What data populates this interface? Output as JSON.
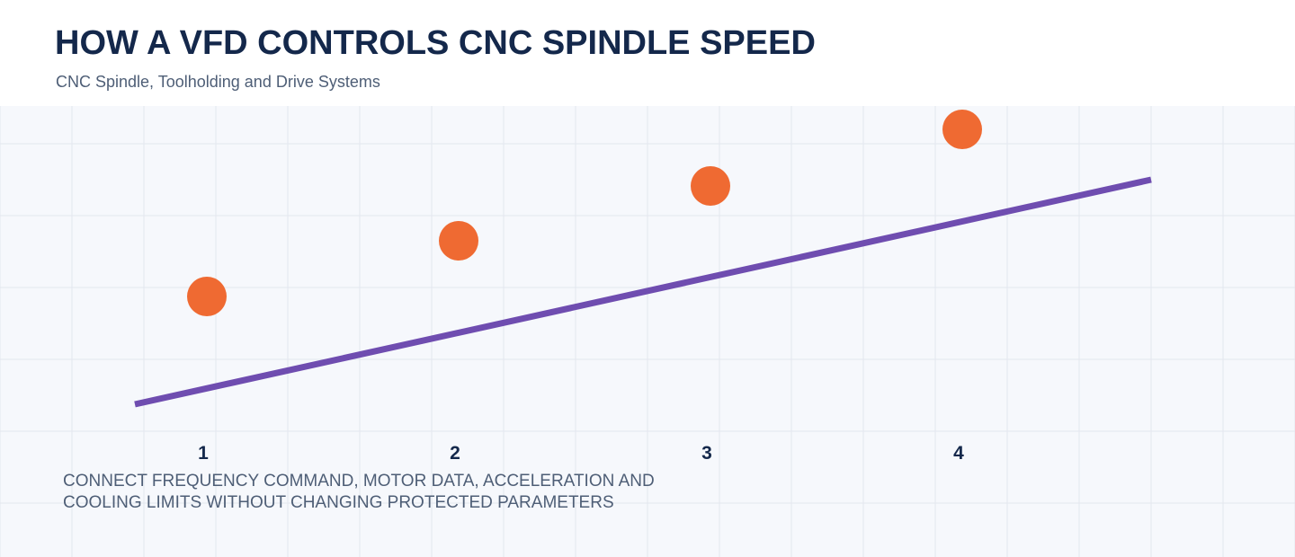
{
  "header": {
    "title": "HOW A VFD CONTROLS CNC SPINDLE SPEED",
    "subtitle": "CNC Spindle, Toolholding and Drive Systems"
  },
  "diagram": {
    "steps": [
      {
        "label": "1"
      },
      {
        "label": "2"
      },
      {
        "label": "3"
      },
      {
        "label": "4"
      }
    ],
    "caption_lines": [
      "CONNECT FREQUENCY COMMAND, MOTOR DATA, ACCELERATION AND",
      "COOLING LIMITS WITHOUT CHANGING PROTECTED PARAMETERS"
    ]
  },
  "colors": {
    "background": "#f6f8fc",
    "grid": "#e3e7ee",
    "dot": "#ef6a32",
    "trend_line": "#6f4db0",
    "title": "#14284b",
    "muted_text": "#4e5e76"
  }
}
